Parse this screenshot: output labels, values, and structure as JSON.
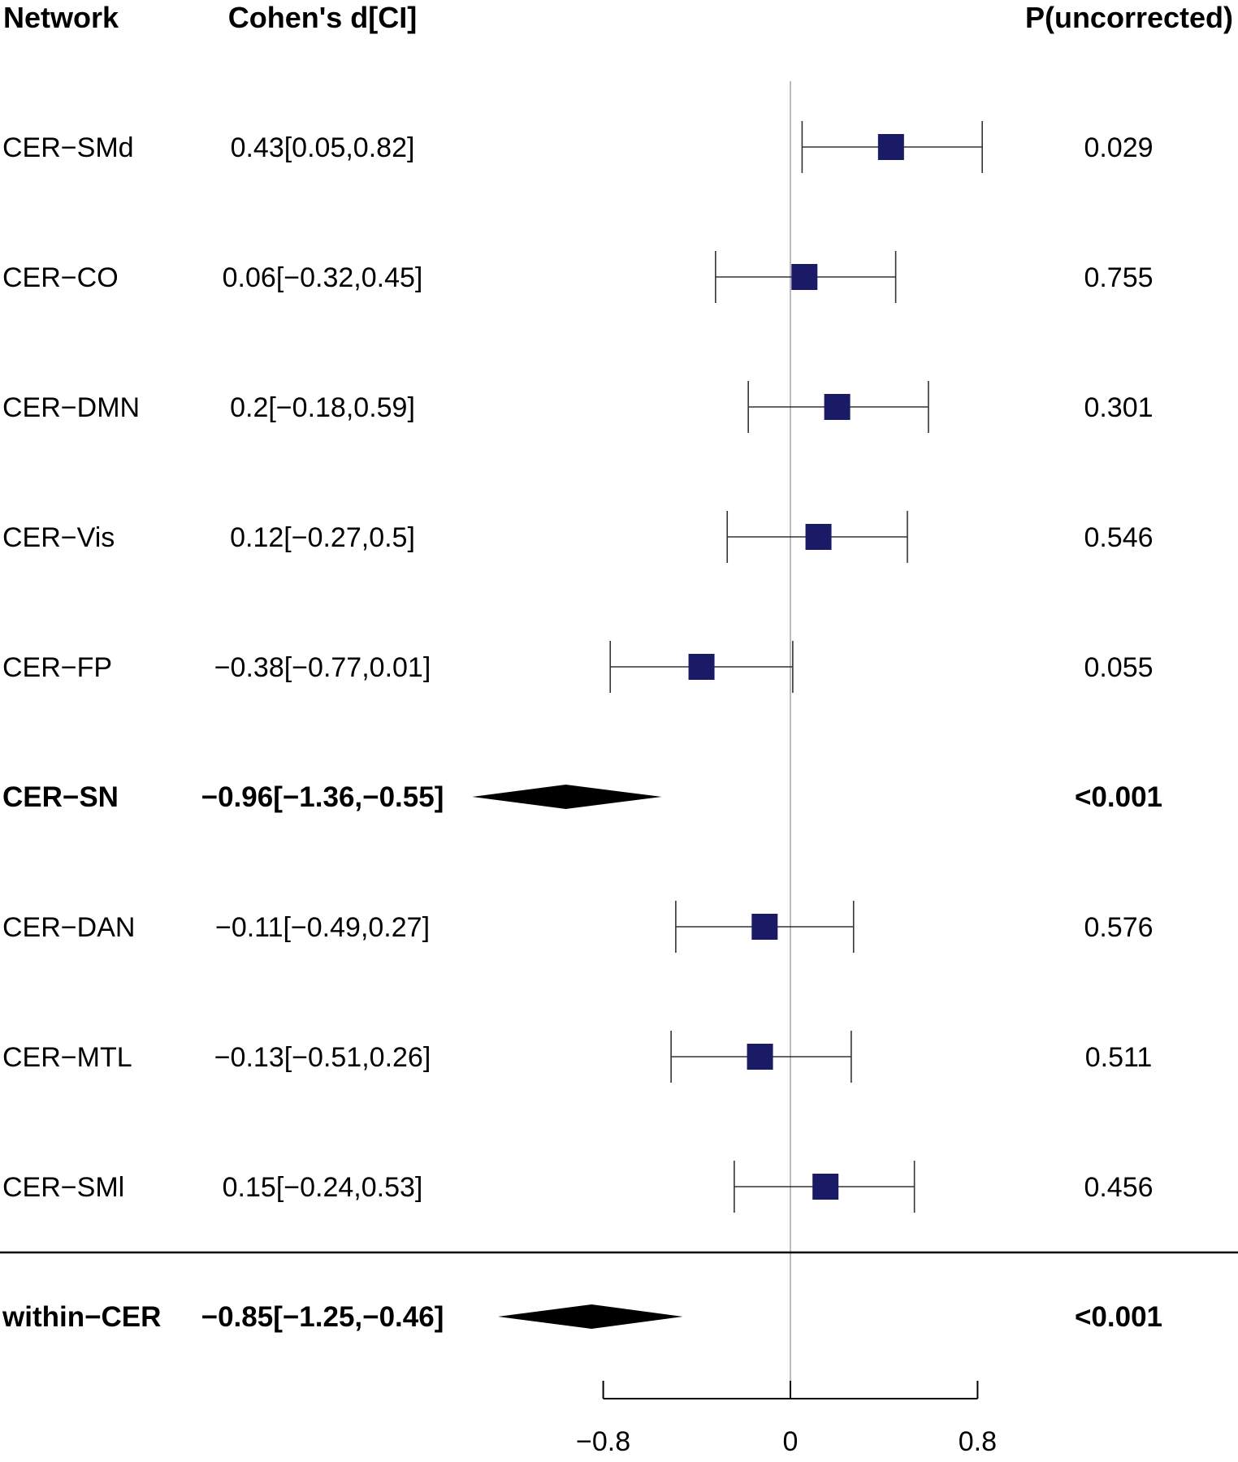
{
  "chart_data": {
    "type": "forest",
    "headers": {
      "network": "Network",
      "effect": "Cohen's d[CI]",
      "p": "P(uncorrected)"
    },
    "rows": [
      {
        "label": "CER−SMd",
        "d": 0.43,
        "lo": 0.05,
        "hi": 0.82,
        "ci_text": "0.43[0.05,0.82]",
        "p_text": "0.029",
        "summary": false
      },
      {
        "label": "CER−CO",
        "d": 0.06,
        "lo": -0.32,
        "hi": 0.45,
        "ci_text": "0.06[−0.32,0.45]",
        "p_text": "0.755",
        "summary": false
      },
      {
        "label": "CER−DMN",
        "d": 0.2,
        "lo": -0.18,
        "hi": 0.59,
        "ci_text": "0.2[−0.18,0.59]",
        "p_text": "0.301",
        "summary": false
      },
      {
        "label": "CER−Vis",
        "d": 0.12,
        "lo": -0.27,
        "hi": 0.5,
        "ci_text": "0.12[−0.27,0.5]",
        "p_text": "0.546",
        "summary": false
      },
      {
        "label": "CER−FP",
        "d": -0.38,
        "lo": -0.77,
        "hi": 0.01,
        "ci_text": "−0.38[−0.77,0.01]",
        "p_text": "0.055",
        "summary": false
      },
      {
        "label": "CER−SN",
        "d": -0.96,
        "lo": -1.36,
        "hi": -0.55,
        "ci_text": "−0.96[−1.36,−0.55]",
        "p_text": "<0.001",
        "summary": true
      },
      {
        "label": "CER−DAN",
        "d": -0.11,
        "lo": -0.49,
        "hi": 0.27,
        "ci_text": "−0.11[−0.49,0.27]",
        "p_text": "0.576",
        "summary": false
      },
      {
        "label": "CER−MTL",
        "d": -0.13,
        "lo": -0.51,
        "hi": 0.26,
        "ci_text": "−0.13[−0.51,0.26]",
        "p_text": "0.511",
        "summary": false
      },
      {
        "label": "CER−SMl",
        "d": 0.15,
        "lo": -0.24,
        "hi": 0.53,
        "ci_text": "0.15[−0.24,0.53]",
        "p_text": "0.456",
        "summary": false
      },
      {
        "label": "within−CER",
        "d": -0.85,
        "lo": -1.25,
        "hi": -0.46,
        "ci_text": "−0.85[−1.25,−0.46]",
        "p_text": "<0.001",
        "summary": true
      }
    ],
    "x_ticks": [
      -0.8,
      0,
      0.8
    ],
    "x_tick_labels": [
      "−0.8",
      "0",
      "0.8"
    ],
    "colors": {
      "marker": "#1a1a66",
      "summary": "#000000",
      "zero_line": "#bbbbbb",
      "ci": "#333333"
    }
  }
}
